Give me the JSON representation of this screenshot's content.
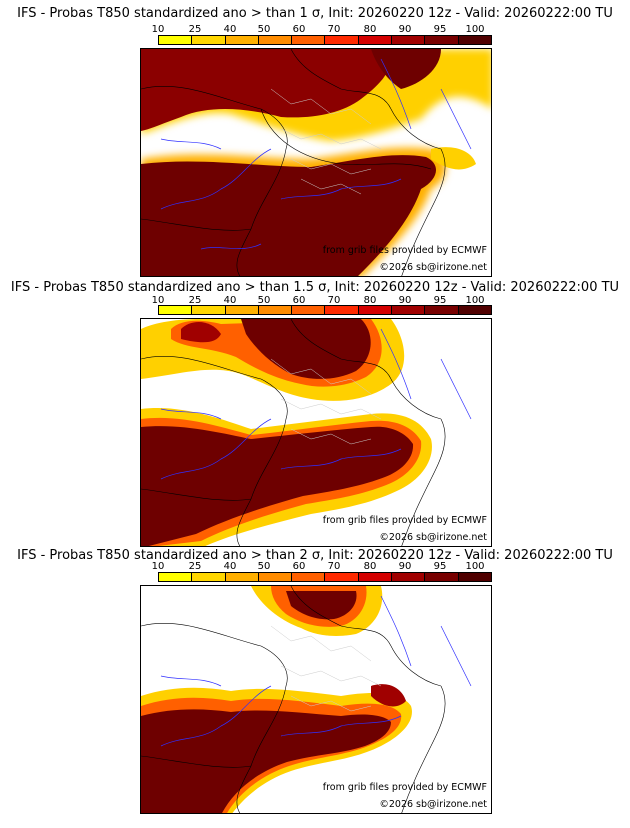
{
  "legend": {
    "ticks": [
      "10",
      "25",
      "40",
      "50",
      "60",
      "70",
      "80",
      "90",
      "95",
      "100"
    ],
    "colors": [
      "#ffff00",
      "#ffd700",
      "#ffb000",
      "#ff8c00",
      "#ff6000",
      "#ff2a00",
      "#d40000",
      "#a00000",
      "#780000",
      "#500000"
    ]
  },
  "credits": {
    "source": "from grib files provided by ECMWF",
    "copyright": "©2026 sb@irizone.net"
  },
  "panels": [
    {
      "title": "IFS - Probas T850  standardized ano > than 1 σ, Init: 20260220 12z - Valid: 20260222:00 TU"
    },
    {
      "title": "IFS - Probas T850  standardized ano > than 1.5 σ, Init: 20260220 12z - Valid: 20260222:00 TU"
    },
    {
      "title": "IFS - Probas T850  standardized ano > than 2 σ, Init: 20260220 12z - Valid: 20260222:00 TU"
    }
  ]
}
